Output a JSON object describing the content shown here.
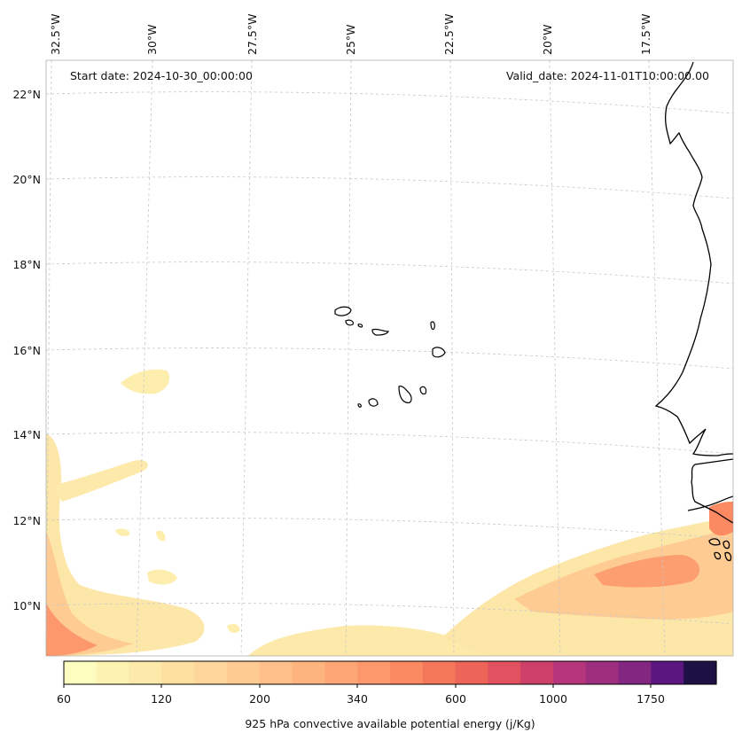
{
  "map": {
    "start_date": "Start date: 2024-10-30_00:00:00",
    "valid_date": "Valid_date: 2024-11-01T10:00:00.00",
    "lon_labels": [
      "32.5°W",
      "30°W",
      "27.5°W",
      "25°W",
      "22.5°W",
      "20°W",
      "17.5°W"
    ],
    "lat_labels": [
      "22°N",
      "20°N",
      "18°N",
      "16°N",
      "14°N",
      "12°N",
      "10°N"
    ],
    "field": "925 hPa convective available potential energy",
    "region": "Cape Verde Islands and West African coast"
  },
  "colorbar": {
    "label": "925 hPa convective available potential energy (j/Kg)",
    "tick_labels": [
      "60",
      "120",
      "200",
      "340",
      "600",
      "1000",
      "1750"
    ],
    "colors": [
      "#fcfdbf",
      "#fcf3b3",
      "#fde9a9",
      "#fde0a0",
      "#fed69b",
      "#fecb93",
      "#febf8a",
      "#feb47f",
      "#fea676",
      "#fd986d",
      "#fb8961",
      "#f57759",
      "#ed6459",
      "#e15160",
      "#cd4069",
      "#b5367a",
      "#9e2f7f",
      "#822681",
      "#5c167f",
      "#1c1044"
    ]
  }
}
